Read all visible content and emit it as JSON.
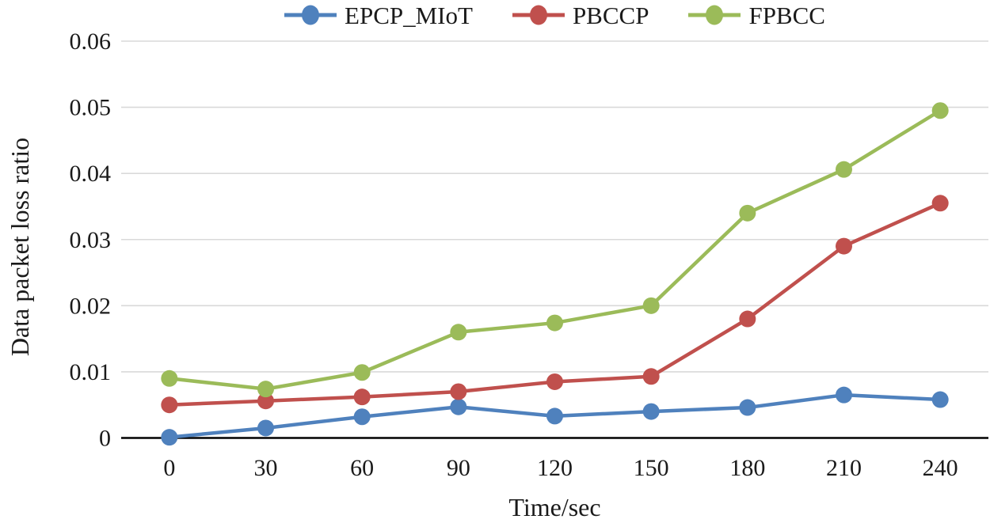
{
  "chart_data": {
    "type": "line",
    "title": "",
    "xlabel": "Time/sec",
    "ylabel": "Data packet loss ratio",
    "x": [
      0,
      30,
      60,
      90,
      120,
      150,
      180,
      210,
      240
    ],
    "ylim": [
      0,
      0.06
    ],
    "ytick_step": 0.01,
    "yticks": [
      "0",
      "0.01",
      "0.02",
      "0.03",
      "0.04",
      "0.05",
      "0.06"
    ],
    "grid": "horizontal",
    "legend_position": "top-center",
    "axis_color": "#000000",
    "gridline_color": "#d9d9d9",
    "series": [
      {
        "name": "EPCP_MIoT",
        "color": "#4F81BD",
        "values": [
          0.0001,
          0.0015,
          0.0032,
          0.0047,
          0.0033,
          0.004,
          0.0046,
          0.0065,
          0.0058
        ]
      },
      {
        "name": "PBCCP",
        "color": "#C0504D",
        "values": [
          0.005,
          0.0056,
          0.0062,
          0.007,
          0.0085,
          0.0093,
          0.018,
          0.029,
          0.0355
        ]
      },
      {
        "name": "FPBCC",
        "color": "#9BBB59",
        "values": [
          0.009,
          0.0074,
          0.0099,
          0.016,
          0.0174,
          0.02,
          0.034,
          0.0406,
          0.0495
        ]
      }
    ]
  }
}
